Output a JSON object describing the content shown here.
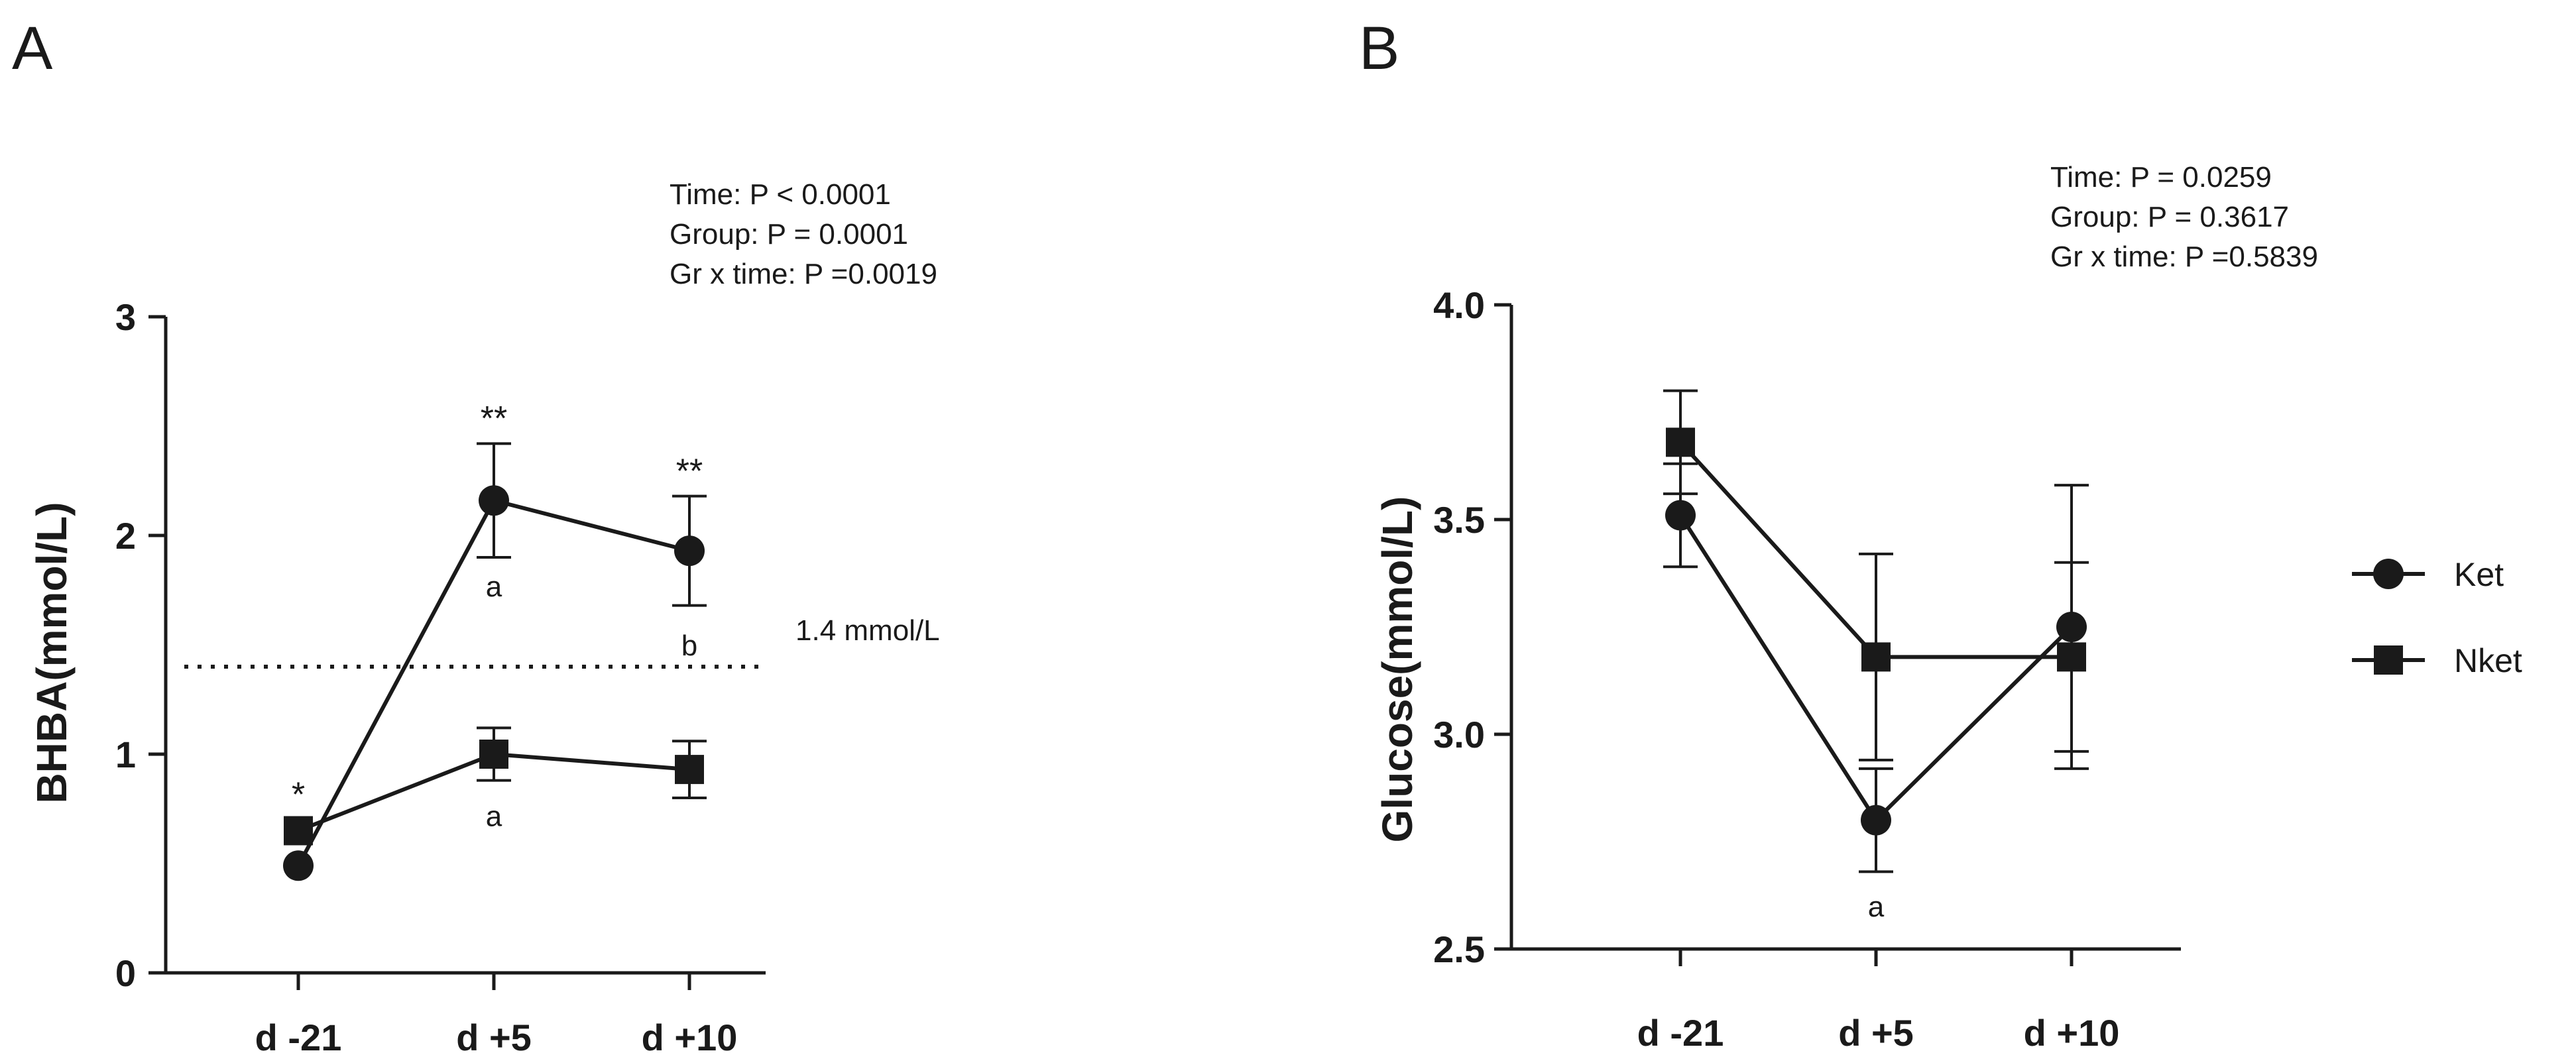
{
  "chart_data": [
    {
      "panel": "A",
      "type": "line",
      "categories": [
        "d -21",
        "d +5",
        "d +10"
      ],
      "ylabel": "BHBA(mmol/L)",
      "ylim": [
        0,
        3
      ],
      "yticks": [
        "0",
        "1",
        "2",
        "3"
      ],
      "stats": [
        "Time: P < 0.0001",
        "Group: P = 0.0001",
        "Gr x time: P =0.0019"
      ],
      "reference_line": {
        "value": 1.4,
        "label": "1.4 mmol/L"
      },
      "series": [
        {
          "name": "Ket",
          "marker": "circle",
          "values": [
            0.49,
            2.16,
            1.93
          ],
          "errors": [
            null,
            0.26,
            0.25
          ]
        },
        {
          "name": "Nket",
          "marker": "square",
          "values": [
            0.65,
            1.0,
            0.93
          ],
          "errors": [
            null,
            0.12,
            0.13
          ]
        }
      ],
      "annotations": [
        {
          "text": "*",
          "category": "d -21",
          "y": 0.81
        },
        {
          "text": "**",
          "category": "d +5",
          "y": 2.53
        },
        {
          "text": "**",
          "category": "d +10",
          "y": 2.29
        },
        {
          "text": "a",
          "category": "d +5",
          "y": 1.77
        },
        {
          "text": "b",
          "category": "d +10",
          "y": 1.5
        },
        {
          "text": "a",
          "category": "d +5",
          "y": 0.72
        }
      ]
    },
    {
      "panel": "B",
      "type": "line",
      "categories": [
        "d -21",
        "d +5",
        "d +10"
      ],
      "ylabel": "Glucose(mmol/L)",
      "ylim": [
        2.5,
        4.0
      ],
      "yticks": [
        "2.5",
        "3.0",
        "3.5",
        "4.0"
      ],
      "stats": [
        "Time: P = 0.0259",
        "Group: P = 0.3617",
        "Gr x time: P =0.5839"
      ],
      "series": [
        {
          "name": "Ket",
          "marker": "circle",
          "values": [
            3.51,
            2.8,
            3.25
          ],
          "errors": [
            0.12,
            0.12,
            0.33
          ]
        },
        {
          "name": "Nket",
          "marker": "square",
          "values": [
            3.68,
            3.18,
            3.18
          ],
          "errors": [
            0.12,
            0.24,
            0.22
          ]
        }
      ],
      "annotations": [
        {
          "text": "a",
          "category": "d +5",
          "y": 2.6
        }
      ]
    }
  ],
  "legend": {
    "entries": [
      "Ket",
      "Nket"
    ],
    "position": "right"
  }
}
